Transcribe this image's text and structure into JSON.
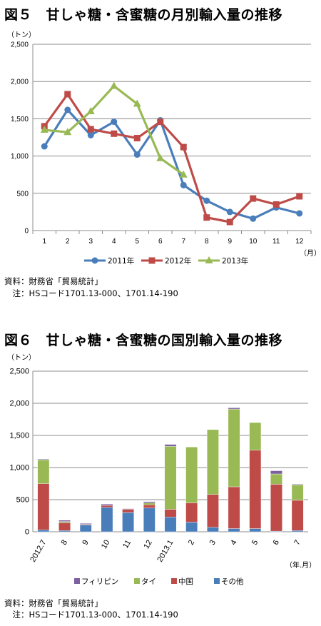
{
  "figure5": {
    "title": "図５　甘しゃ糖・含蜜糖の月別輸入量の推移",
    "y_unit": "（トン）",
    "x_unit": "（月）",
    "source": "資料：財務省「貿易統計」",
    "note": "　注：HSコード1701.13-000、1701.14-190"
  },
  "figure6": {
    "title": "図６　甘しゃ糖・含蜜糖の国別輸入量の推移",
    "y_unit": "（トン）",
    "x_unit": "（年.月）",
    "source": "資料：財務省「貿易統計」",
    "note": "　注：HSコード1701.13-000、1701.14-190"
  },
  "chart_data": [
    {
      "type": "line",
      "title": "図５　甘しゃ糖・含蜜糖の月別輸入量の推移",
      "xlabel": "（月）",
      "ylabel": "（トン）",
      "categories": [
        "1",
        "2",
        "3",
        "4",
        "5",
        "6",
        "7",
        "8",
        "9",
        "10",
        "11",
        "12"
      ],
      "ylim": [
        0,
        2500
      ],
      "yticks": [
        "0",
        "500",
        "1,000",
        "1,500",
        "2,000",
        "2,500"
      ],
      "grid": true,
      "legend_position": "bottom",
      "series": [
        {
          "name": "2011年",
          "color": "#4a7ebb",
          "marker": "circle",
          "values": [
            1130,
            1620,
            1280,
            1460,
            1020,
            1480,
            610,
            400,
            250,
            160,
            310,
            230
          ]
        },
        {
          "name": "2012年",
          "color": "#be4b48",
          "marker": "square",
          "values": [
            1400,
            1830,
            1360,
            1300,
            1240,
            1460,
            1120,
            175,
            115,
            430,
            350,
            460
          ]
        },
        {
          "name": "2013年",
          "color": "#98b954",
          "marker": "triangle",
          "values": [
            1350,
            1320,
            1600,
            1940,
            1700,
            970,
            750,
            null,
            null,
            null,
            null,
            null
          ]
        }
      ]
    },
    {
      "type": "bar",
      "stacked": true,
      "title": "図６　甘しゃ糖・含蜜糖の国別輸入量の推移",
      "xlabel": "（年.月）",
      "ylabel": "（トン）",
      "categories": [
        "2012.7",
        "8",
        "9",
        "10",
        "11",
        "12",
        "2013.1",
        "2",
        "3",
        "4",
        "5",
        "6",
        "7"
      ],
      "ylim": [
        0,
        2500
      ],
      "yticks": [
        "0",
        "500",
        "1,000",
        "1,500",
        "2,000",
        "2,500"
      ],
      "grid": true,
      "legend_position": "bottom",
      "series": [
        {
          "name": "その他",
          "color": "#4a7ebb",
          "values": [
            30,
            20,
            110,
            380,
            300,
            370,
            230,
            150,
            70,
            50,
            50,
            10,
            20
          ]
        },
        {
          "name": "中国",
          "color": "#be4b48",
          "values": [
            720,
            120,
            10,
            30,
            50,
            50,
            120,
            300,
            510,
            650,
            1220,
            730,
            470
          ]
        },
        {
          "name": "タイ",
          "color": "#98b954",
          "values": [
            370,
            20,
            0,
            0,
            0,
            30,
            980,
            870,
            1010,
            1210,
            430,
            160,
            240
          ]
        },
        {
          "name": "フィリピン",
          "color": "#7d60a0",
          "values": [
            10,
            20,
            10,
            20,
            10,
            20,
            30,
            0,
            0,
            20,
            0,
            50,
            10
          ]
        }
      ]
    }
  ]
}
